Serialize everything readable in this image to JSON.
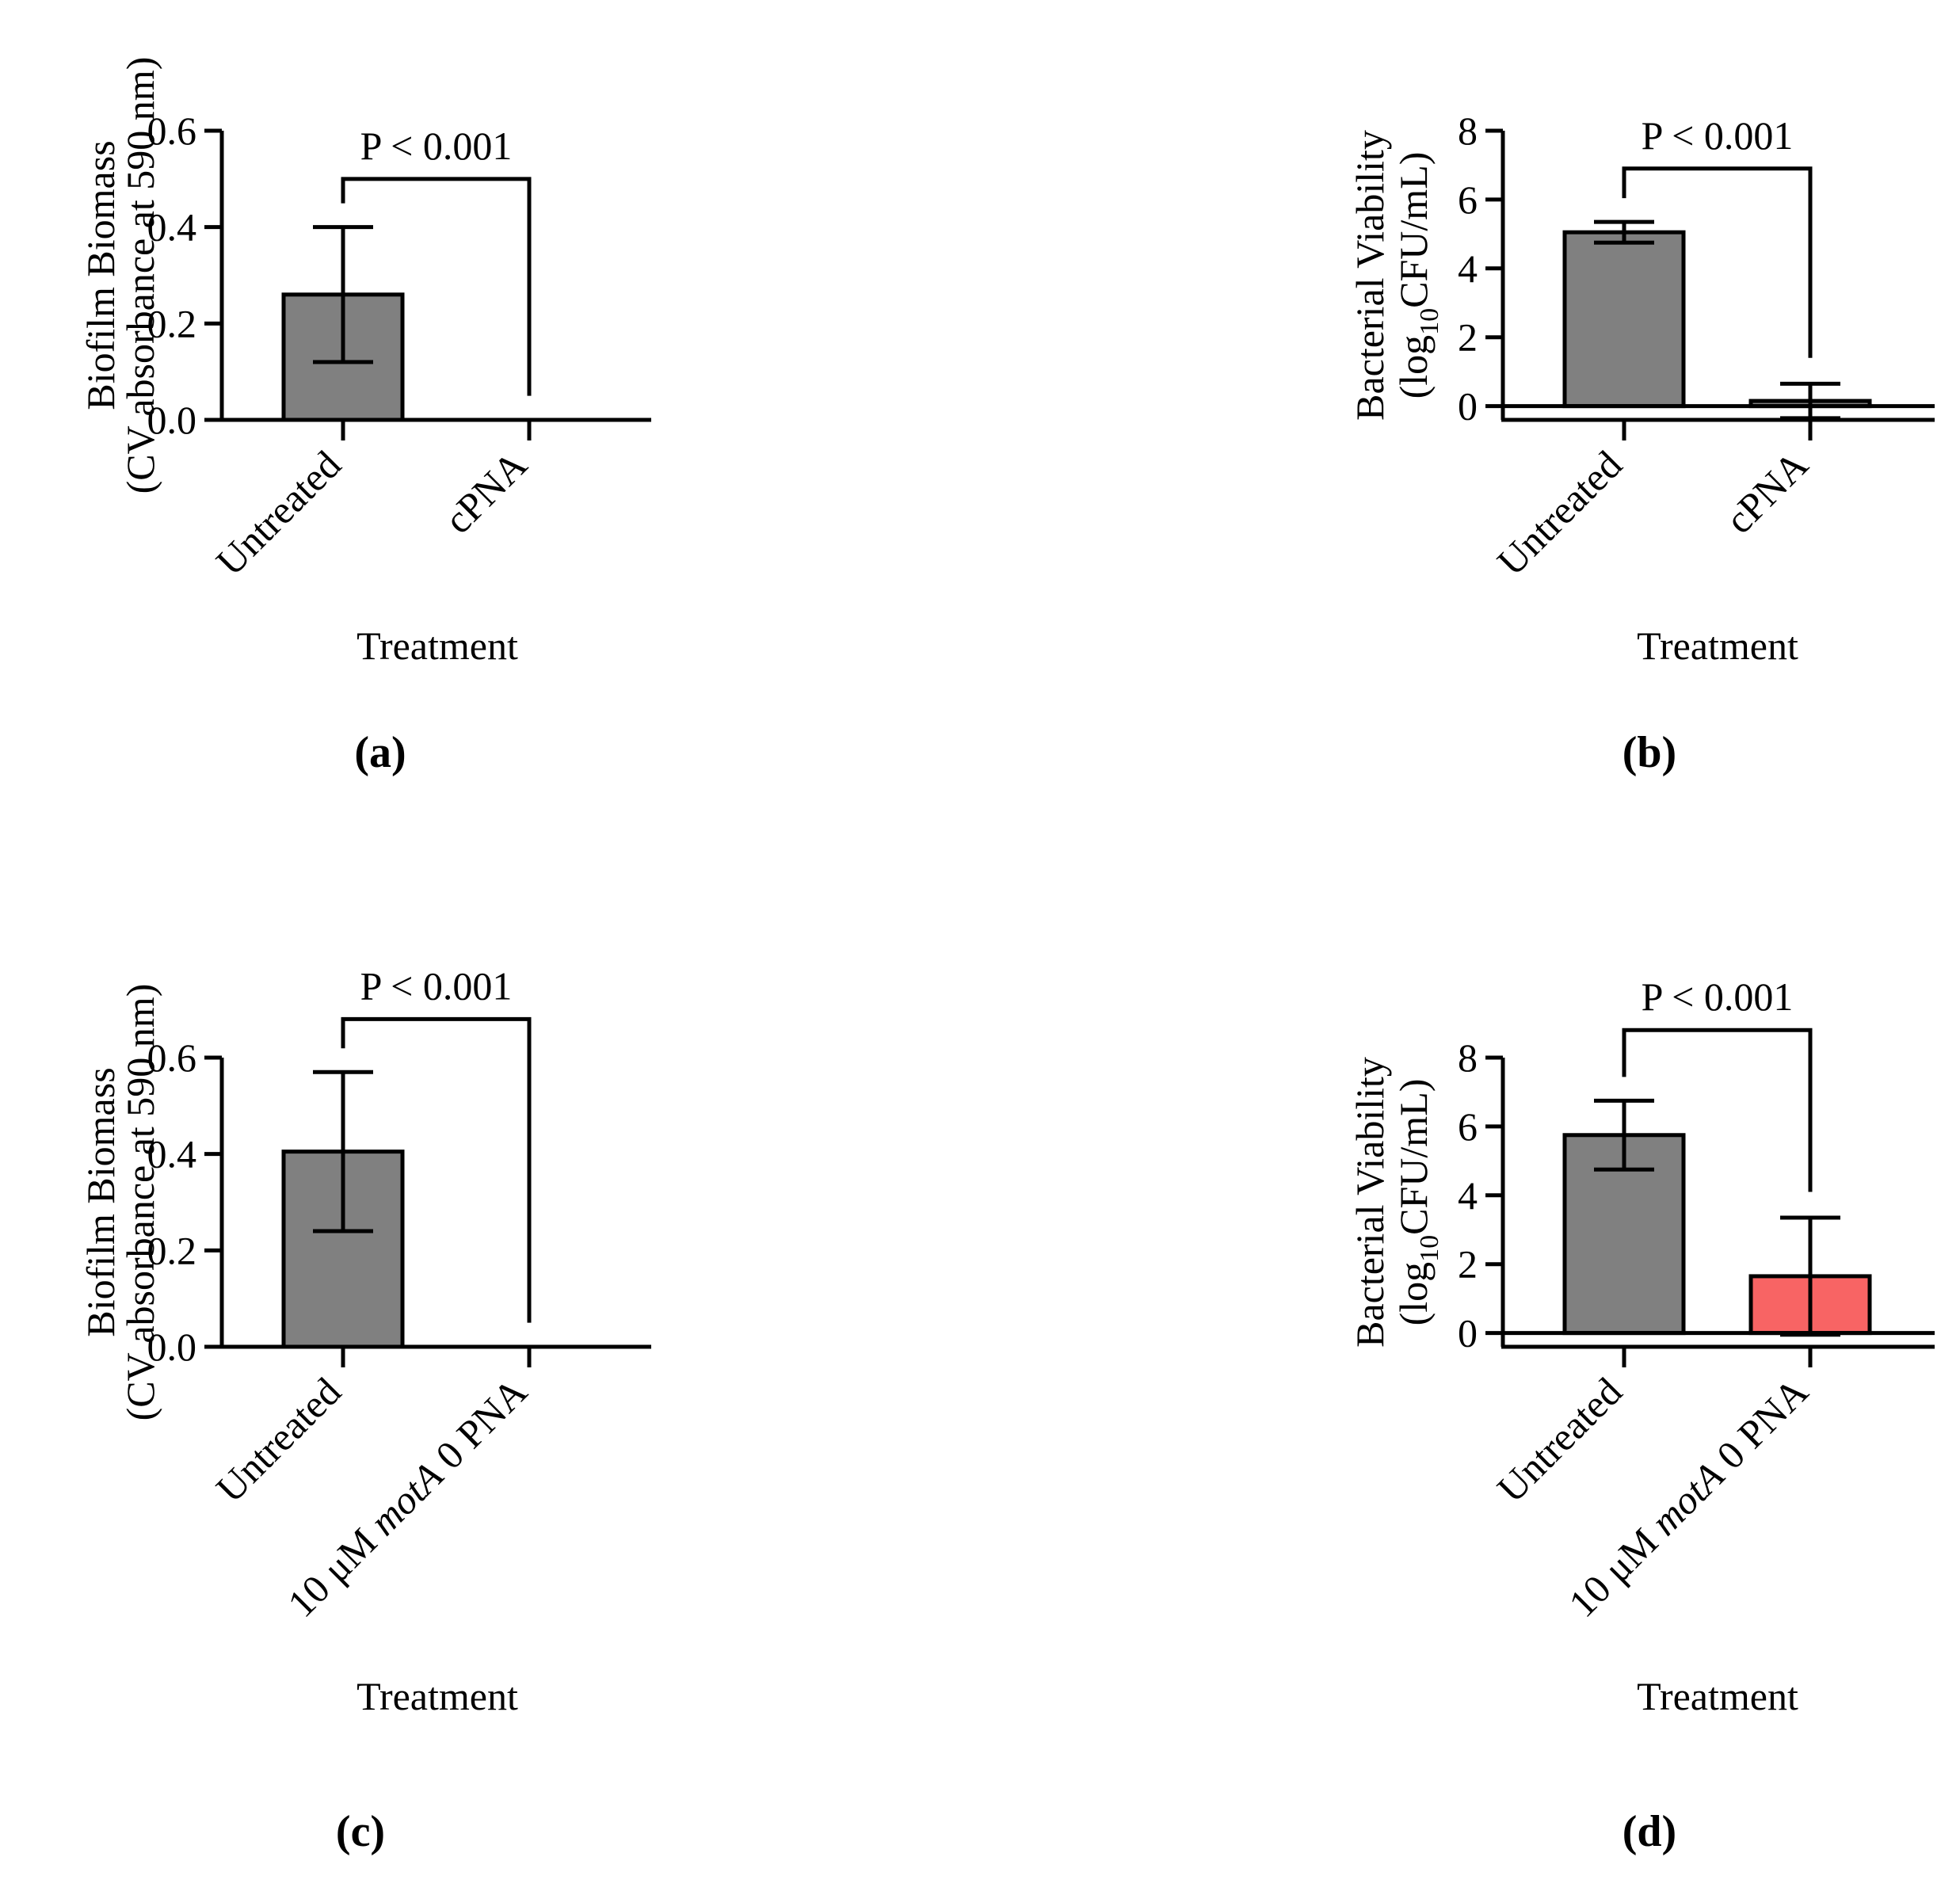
{
  "chart_data": [
    {
      "panel_label": "(a)",
      "type": "bar",
      "categories": [
        "Untreated",
        "cPNA"
      ],
      "category_parts": [
        [
          {
            "t": "Untreated",
            "i": false
          }
        ],
        [
          {
            "t": "cPNA",
            "i": false
          }
        ]
      ],
      "values": [
        0.26,
        0.0
      ],
      "errors": [
        0.14,
        0.0
      ],
      "colors": [
        "#808080",
        "#808080"
      ],
      "ylabel_lines": [
        "Biofilm Biomass",
        "(CV absorbance at 590 nm)"
      ],
      "xlabel": "Treatment",
      "ylim": [
        0,
        0.6
      ],
      "yticks": [
        0.0,
        0.2,
        0.4,
        0.6
      ],
      "ytick_labels": [
        "0.0",
        "0.2",
        "0.4",
        "0.6"
      ],
      "significance": "P < 0.001",
      "sig_level": 0.5,
      "sig_right_end": 0.05,
      "zero_line": false
    },
    {
      "panel_label": "(b)",
      "type": "bar",
      "categories": [
        "Untreated",
        "cPNA"
      ],
      "category_parts": [
        [
          {
            "t": "Untreated",
            "i": false
          }
        ],
        [
          {
            "t": "cPNA",
            "i": false
          }
        ]
      ],
      "values": [
        5.05,
        0.15
      ],
      "errors": [
        0.3,
        0.5
      ],
      "colors": [
        "#808080",
        "#808080"
      ],
      "ylabel_lines": [
        "Bacterial Viability"
      ],
      "ylabel_parts": [
        {
          "t": "(log"
        },
        {
          "t": "10",
          "sub": true
        },
        {
          "t": "CFU/mL)"
        }
      ],
      "xlabel": "Treatment",
      "ylim": [
        -0.4,
        8
      ],
      "yticks": [
        0,
        2,
        4,
        6,
        8
      ],
      "ytick_labels": [
        "0",
        "2",
        "4",
        "6",
        "8"
      ],
      "significance": "P < 0.001",
      "sig_level": 6.9,
      "sig_right_end": 1.4,
      "zero_line": true
    },
    {
      "panel_label": "(c)",
      "type": "bar",
      "categories": [
        "Untreated",
        "10 μM motA 0 PNA"
      ],
      "category_parts": [
        [
          {
            "t": "Untreated",
            "i": false
          }
        ],
        [
          {
            "t": "10 μM ",
            "i": false
          },
          {
            "t": "motA",
            "i": true
          },
          {
            "t": " 0 PNA",
            "i": false
          }
        ]
      ],
      "values": [
        0.405,
        0.0
      ],
      "errors": [
        0.165,
        0.0
      ],
      "colors": [
        "#808080",
        "#808080"
      ],
      "ylabel_lines": [
        "Biofilm Biomass",
        "(CV absorbance at 590 nm)"
      ],
      "xlabel": "Treatment",
      "ylim": [
        0,
        0.6
      ],
      "yticks": [
        0.0,
        0.2,
        0.4,
        0.6
      ],
      "ytick_labels": [
        "0.0",
        "0.2",
        "0.4",
        "0.6"
      ],
      "significance": "P < 0.001",
      "sig_level": 0.68,
      "sig_right_end": 0.05,
      "zero_line": false
    },
    {
      "panel_label": "(d)",
      "type": "bar",
      "categories": [
        "Untreated",
        "10 μM motA 0 PNA"
      ],
      "category_parts": [
        [
          {
            "t": "Untreated",
            "i": false
          }
        ],
        [
          {
            "t": "10 μM ",
            "i": false
          },
          {
            "t": "motA",
            "i": true
          },
          {
            "t": " 0 PNA",
            "i": false
          }
        ]
      ],
      "values": [
        5.75,
        1.65
      ],
      "errors": [
        1.0,
        1.7
      ],
      "colors": [
        "#808080",
        "#f86464"
      ],
      "ylabel_lines": [
        "Bacterial Viability"
      ],
      "ylabel_parts": [
        {
          "t": "(log"
        },
        {
          "t": "10",
          "sub": true
        },
        {
          "t": "CFU/mL)"
        }
      ],
      "xlabel": "Treatment",
      "ylim": [
        -0.4,
        8
      ],
      "yticks": [
        0,
        2,
        4,
        6,
        8
      ],
      "ytick_labels": [
        "0",
        "2",
        "4",
        "6",
        "8"
      ],
      "significance": "P < 0.001",
      "sig_level": 8.8,
      "sig_right_end": 4.1,
      "zero_line": true
    }
  ]
}
